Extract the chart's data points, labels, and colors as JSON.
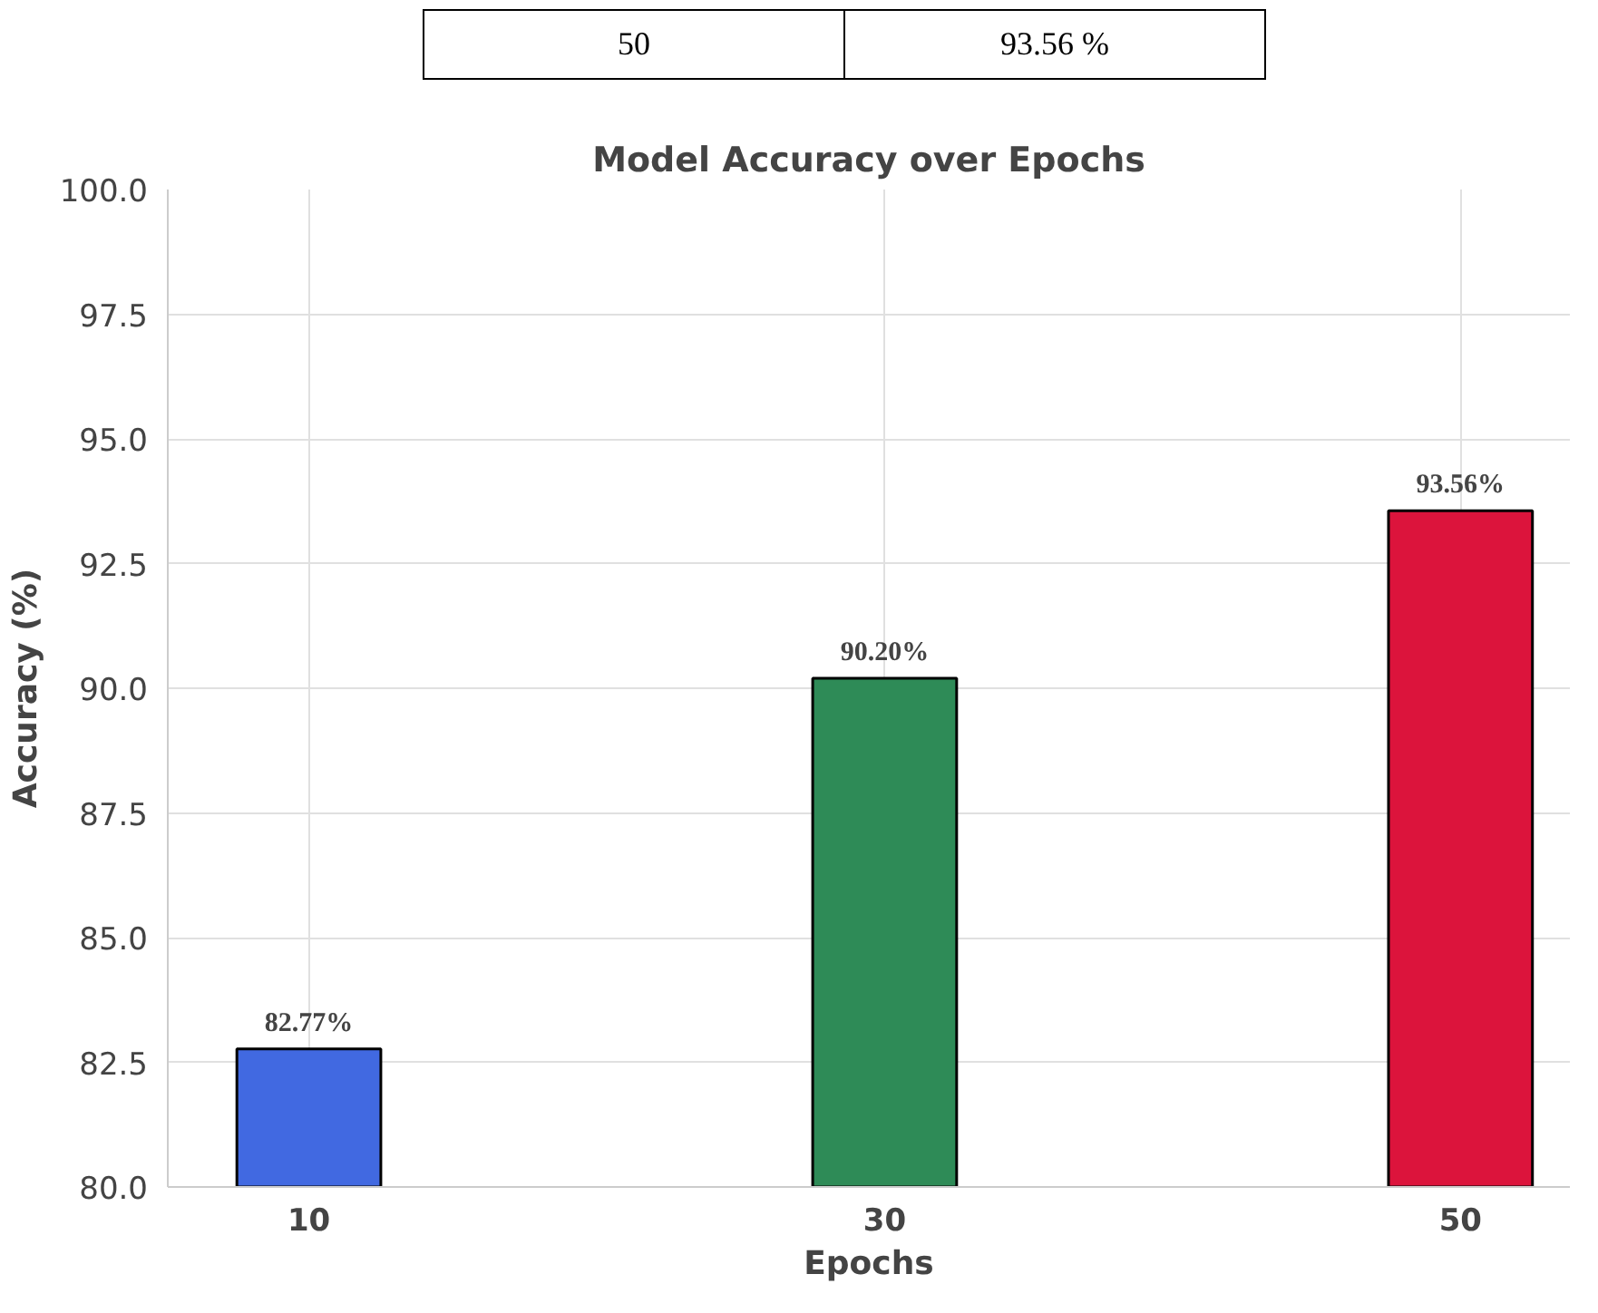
{
  "chart_data": {
    "type": "bar",
    "title": "Model Accuracy over Epochs",
    "xlabel": "Epochs",
    "ylabel": "Accuracy (%)",
    "categories": [
      "10",
      "30",
      "50"
    ],
    "values": [
      82.77,
      90.2,
      93.56
    ],
    "colors": [
      "#4169e1",
      "#2e8b57",
      "#dc143c"
    ],
    "value_labels": [
      "82.77%",
      "90.20%",
      "93.56%"
    ],
    "ylim": [
      80,
      100
    ],
    "yticks": [
      {
        "value": 80,
        "label": "80.0"
      },
      {
        "value": 82.5,
        "label": "82.5"
      },
      {
        "value": 85,
        "label": "85.0"
      },
      {
        "value": 87.5,
        "label": "87.5"
      },
      {
        "value": 90,
        "label": "90.0"
      },
      {
        "value": 92.5,
        "label": "92.5"
      },
      {
        "value": 95,
        "label": "95.0"
      },
      {
        "value": 97.5,
        "label": "97.5"
      },
      {
        "value": 100,
        "label": "100.0"
      }
    ],
    "grid": true,
    "annotations": [
      "50",
      "93.56 %"
    ]
  }
}
